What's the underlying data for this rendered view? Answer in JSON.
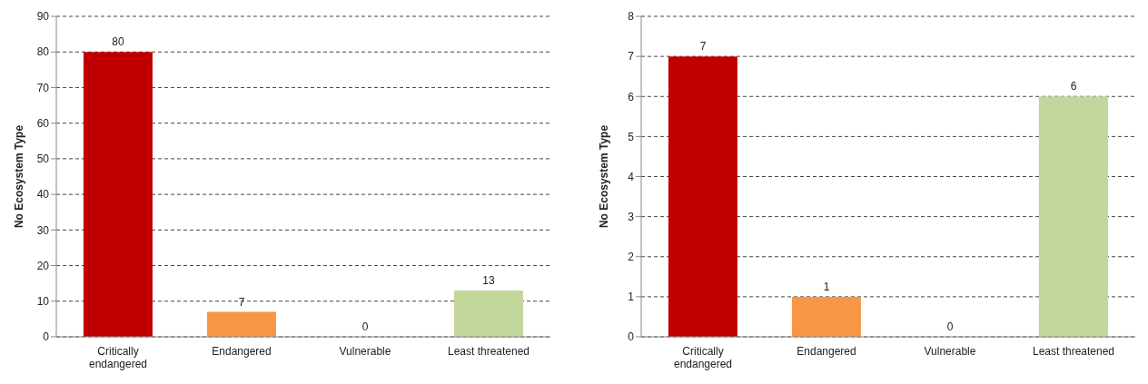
{
  "chart_data": [
    {
      "type": "bar",
      "categories": [
        "Critically endangered",
        "Endangered",
        "Vulnerable",
        "Least threatened"
      ],
      "values": [
        80,
        7,
        0,
        13
      ],
      "colors": [
        "#c00000",
        "#f79646",
        "#f79646",
        "#c3d69b"
      ],
      "ylabel": "No Ecosystem Type",
      "ylim": [
        0,
        90
      ],
      "yticks": [
        0,
        10,
        20,
        30,
        40,
        50,
        60,
        70,
        80,
        90
      ],
      "grid": "y",
      "data_labels": true
    },
    {
      "type": "bar",
      "categories": [
        "Critically endangered",
        "Endangered",
        "Vulnerable",
        "Least threatened"
      ],
      "values": [
        7,
        1,
        0,
        6
      ],
      "colors": [
        "#c00000",
        "#f79646",
        "#f79646",
        "#c3d69b"
      ],
      "ylabel": "No Ecosystem Type",
      "ylim": [
        0,
        8
      ],
      "yticks": [
        0,
        1,
        2,
        3,
        4,
        5,
        6,
        7,
        8
      ],
      "grid": "y",
      "data_labels": true
    }
  ]
}
